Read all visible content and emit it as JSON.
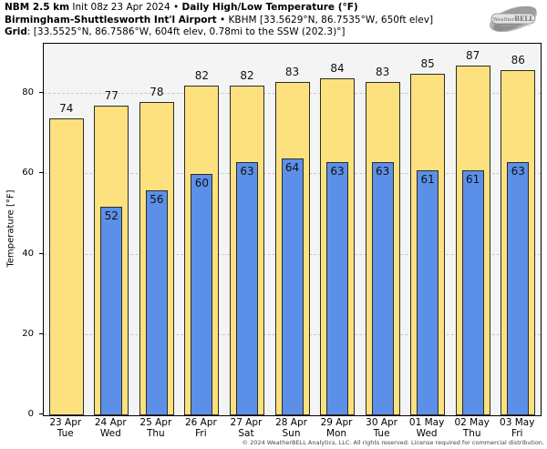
{
  "header": {
    "line1_bold1": "NBM 2.5 km",
    "line1_regular": " Init 08z 23 Apr 2024 • ",
    "line1_bold2": "Daily High/Low Temperature (°F)",
    "line2_bold": "Birmingham-Shuttlesworth Int'l Airport",
    "line2_regular": " • KBHM [33.5629°N, 86.7535°W, 650ft elev]",
    "line3_bold": "Grid",
    "line3_regular": ": [33.5525°N, 86.7586°W, 604ft elev, 0.78mi to the SSW (202.3)°]"
  },
  "logo": {
    "part1": "Weather",
    "part2": "BELL"
  },
  "chart_data": {
    "type": "bar",
    "title": "NBM 2.5 km Init 08z 23 Apr 2024 • Daily High/Low Temperature (°F)",
    "subtitle": "Birmingham-Shuttlesworth Int'l Airport • KBHM [33.5629°N, 86.7535°W, 650ft elev]",
    "grid_info": "Grid: [33.5525°N, 86.7586°W, 604ft elev, 0.78mi to the SSW (202.3)°]",
    "categories": [
      "23 Apr",
      "24 Apr",
      "25 Apr",
      "26 Apr",
      "27 Apr",
      "28 Apr",
      "29 Apr",
      "30 Apr",
      "01 May",
      "02 May",
      "03 May"
    ],
    "weekdays": [
      "Tue",
      "Wed",
      "Thu",
      "Fri",
      "Sat",
      "Sun",
      "Mon",
      "Tue",
      "Wed",
      "Thu",
      "Fri"
    ],
    "series": [
      {
        "name": "Daily High",
        "color": "#fce17e",
        "values": [
          74,
          77,
          78,
          82,
          82,
          83,
          84,
          83,
          85,
          87,
          86
        ]
      },
      {
        "name": "Daily Low",
        "color": "#5c90e8",
        "values": [
          null,
          52,
          56,
          60,
          63,
          64,
          63,
          63,
          61,
          61,
          63
        ]
      }
    ],
    "xlabel": "",
    "ylabel": "Temperature [°F]",
    "yticks": [
      0,
      20,
      40,
      60,
      80
    ],
    "ylim": [
      0,
      92.5
    ],
    "grid": "dashed-horizontal",
    "legend": "none",
    "plot_bg": "#f4f4f4",
    "bar_border": "#2b2b2b"
  },
  "footer": "© 2024 WeatherBELL Analytics, LLC. All rights reserved. License required for commercial distribution."
}
